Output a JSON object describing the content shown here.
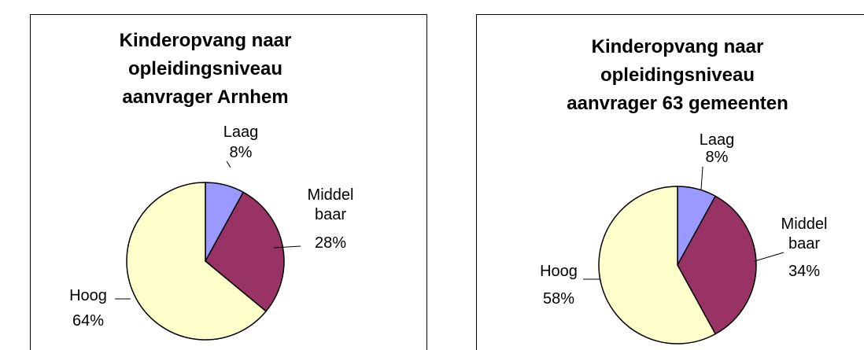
{
  "chart_data": [
    {
      "type": "pie",
      "title": [
        "Kinderopvang naar",
        "opleidingsniveau",
        "aanvrager Arnhem"
      ],
      "categories": [
        "Laag",
        "Middel baar",
        "Hoog"
      ],
      "values": [
        8,
        28,
        64
      ],
      "value_labels": [
        "8%",
        "28%",
        "64%"
      ],
      "colors": [
        "#9999ff",
        "#993366",
        "#ffffcc"
      ]
    },
    {
      "type": "pie",
      "title": [
        "Kinderopvang naar",
        "opleidingsniveau",
        "aanvrager 63 gemeenten"
      ],
      "categories": [
        "Laag",
        "Middel baar",
        "Hoog"
      ],
      "values": [
        8,
        34,
        58
      ],
      "value_labels": [
        "8%",
        "34%",
        "58%"
      ],
      "colors": [
        "#9999ff",
        "#993366",
        "#ffffcc"
      ]
    }
  ]
}
